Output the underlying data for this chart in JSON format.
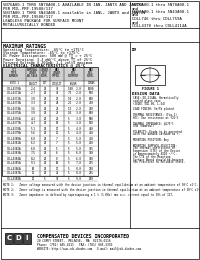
{
  "title_lines": [
    "5N76A00-1 THRU 5N78A00-1 AVAILABLE IN JAN, JANTX AND JANTXV",
    "PER MIL-PRF-19500/117",
    "5N37A00-1 THRU 5N43A00-1 available in JANL, JANTX and JANTXV",
    "PER MIL-PRF-19500/117",
    "LEADLESS PACKAGE FOR SURFACE MOUNT",
    "METALLURGICALLY BONDED"
  ],
  "title_right_lines": [
    "5N76A00-1 thru 5N78A00-1",
    "and",
    "5N37A00-1 thru 5N43A00-1",
    "and",
    "CDLL746 thru CDLL759A",
    "and",
    "CDLL4370 thru CDLL4114A"
  ],
  "max_ratings_title": "MAXIMUM RATINGS",
  "max_ratings": [
    "Operating Temperature: -65°C to +175°C",
    "Storage Temperature: -65°C to +175°C",
    "DC Power Dissipation: 500 mW @ T⁁ = + 25°C",
    "Power Derating: 3.3 mW/°C above T⁁ of 25°C",
    "Forward Voltage @ 200mA: 1.1 volts maximum"
  ],
  "table_title": "ELECTRICAL CHARACTERISTICS @ 25°C",
  "col_headers": [
    "CDI\nTYPE\nNUMBER",
    "NOMINAL\nZENER\nVOLTAGE\n(Volts)",
    "ZENER\nTEST\nCURRENT\n(mA)",
    "MAXIMUM\nZENER\nIMPEDANCE\n(Ohms)",
    "MAXIMUM\nREVERSE CURRENT\n(uA)",
    "MAXIMUM\nDEVICE\nCURRENT\n(mA)"
  ],
  "sub_headers": [
    "NOTE 1",
    "VZ @ IZT\n(mA)",
    "IZT",
    "ZZT @\nIZT (Ohms)",
    "ZZK @\nIZK\n(mA) 0.25 mA",
    "IR @\nVR (Volts)",
    "IZMAX"
  ],
  "rows": [
    [
      "CDLL4370A",
      "2.4",
      "20",
      "30",
      "100  2.0",
      "1000"
    ],
    [
      "CDLL4371A",
      "2.7",
      "20",
      "30",
      "75   2.0",
      "900"
    ],
    [
      "CDLL4372A",
      "3.0",
      "20",
      "29",
      "50   2.0",
      "800"
    ],
    [
      "CDLL4373A",
      "3.3",
      "20",
      "28",
      "25   2.0",
      "750"
    ],
    [
      "CDLL4374A",
      "3.6",
      "20",
      "24",
      "15   2.0",
      "700"
    ],
    [
      "CDLL4375A",
      "3.9",
      "20",
      "23",
      "10   3.0",
      "630"
    ],
    [
      "CDLL4376A",
      "4.3",
      "20",
      "22",
      "5    3.0",
      "580"
    ],
    [
      "CDLL4377A",
      "4.7",
      "20",
      "19",
      "5    3.0",
      "530"
    ],
    [
      "CDLL4378A",
      "5.1",
      "20",
      "17",
      "5    4.0",
      "490"
    ],
    [
      "CDLL4379A",
      "5.6",
      "20",
      "11",
      "5    4.0",
      "450"
    ],
    [
      "CDLL4380A",
      "6.0",
      "20",
      "7",
      "5    5.0",
      "410"
    ],
    [
      "CDLL4381A",
      "6.2",
      "20",
      "7",
      "5    5.0",
      "400"
    ],
    [
      "CDLL4382A",
      "6.8",
      "20",
      "5",
      "5    5.0",
      "365"
    ],
    [
      "CDLL4383A",
      "7.5",
      "20",
      "6",
      "5    6.0",
      "330"
    ],
    [
      "CDLL4384A",
      "8.2",
      "20",
      "8",
      "5    6.0",
      "300"
    ],
    [
      "CDLL4385A",
      "9.1",
      "20",
      "10",
      "5    7.0",
      "275"
    ],
    [
      "CDLL4386A",
      "10",
      "20",
      "17",
      "5    8.0",
      "250"
    ],
    [
      "CDLL4387A",
      "11",
      "20",
      "22",
      "5    8.0",
      "225"
    ],
    [
      "CDLL4388A",
      "12",
      "5",
      "30",
      "5    9.0",
      "200"
    ]
  ],
  "notes": [
    "NOTE 1:   Zener voltage measured with the device junction in thermal equilibrium at an ambient temperature of 30°C ±1°C.",
    "NOTE 2:   Zener voltage is measured with the device junction in thermal equilibrium at an ambient temperature of 30°C ±1°C.",
    "NOTE 3:   Zener impedance is defined by superimposing a 1 % (1 KHz) rms a.c. current equal to 10% of IZT."
  ],
  "design_data_title": "DESIGN DATA",
  "design_data": [
    "CASE: DO-213AA, Hermetically sealed",
    "glass case (JEDEC SOD-80, L-54)",
    "",
    "LEAD FINISH: Sn/Pb plated",
    "",
    "THERMAL RESISTANCE: (Figure 1)",
    "θJC: One resistance at + 25°C",
    "",
    "THERMAL IMPEDANCE: @ 175",
    "OTA (nominal)",
    "",
    "POLARITY: Diode to be operated with",
    "the banded cathode as positive.",
    "",
    "MOUNTING POSITION: Any",
    "",
    "MOUNTING SURFACE SELECTION:",
    "The thermal coefficient of Expansion",
    "(CTE) of the Device is Approximately",
    "4X10⁻⁶/°C. The CTE of the Mounting",
    "Surface Board should be between the",
    "Practical to Reliable State, SPE: This",
    "Device."
  ],
  "cdi_logo_text": "COMPENSATED DEVICES INCORPORATED",
  "address": "20 COREY STREET,  MELROSE,  MA  02176-0116",
  "phone": "Phone: (781) 665-4211",
  "fax": "FAX: (781) 665-3330",
  "website": "WEBSITE: http://www.cdi-diodes.com",
  "email": "E-mail: mail@cdi-diodes.com",
  "bg_color": "#ffffff",
  "text_color": "#000000",
  "table_header_bg": "#cccccc",
  "border_color": "#000000"
}
